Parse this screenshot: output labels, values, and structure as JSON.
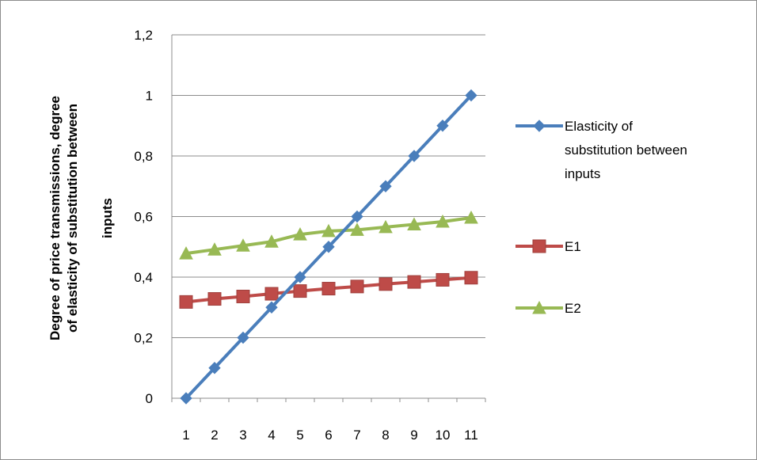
{
  "chart_data": {
    "type": "line",
    "title": "",
    "xlabel": "",
    "ylabel_lines": [
      "Degree of price transmissions, degree",
      "of elasticity of substitution  between",
      "inputs"
    ],
    "x": [
      1,
      2,
      3,
      4,
      5,
      6,
      7,
      8,
      9,
      10,
      11
    ],
    "ylim": [
      0,
      1.2
    ],
    "y_ticks": [
      0,
      0.2,
      0.4,
      0.6,
      0.8,
      1,
      1.2
    ],
    "y_tick_labels": [
      "0",
      "0,2",
      "0,4",
      "0,6",
      "0,8",
      "1",
      "1,2"
    ],
    "grid": "horizontal",
    "legend_position": "right",
    "series": [
      {
        "name": "Elasticity of substitution between inputs",
        "legend_lines": [
          "Elasticity of",
          "substitution between",
          "inputs"
        ],
        "marker": "diamond",
        "color": "#4a7ebb",
        "values": [
          0,
          0.1,
          0.2,
          0.3,
          0.4,
          0.5,
          0.6,
          0.7,
          0.8,
          0.9,
          1.0
        ]
      },
      {
        "name": "E1",
        "legend_lines": [
          "E1"
        ],
        "marker": "square",
        "color": "#be4b48",
        "values": [
          0.318,
          0.328,
          0.336,
          0.345,
          0.354,
          0.362,
          0.369,
          0.377,
          0.384,
          0.391,
          0.398
        ]
      },
      {
        "name": "E2",
        "legend_lines": [
          "E2"
        ],
        "marker": "triangle",
        "color": "#98b954",
        "values": [
          0.478,
          0.491,
          0.504,
          0.517,
          0.541,
          0.552,
          0.556,
          0.565,
          0.574,
          0.583,
          0.596
        ]
      }
    ]
  }
}
